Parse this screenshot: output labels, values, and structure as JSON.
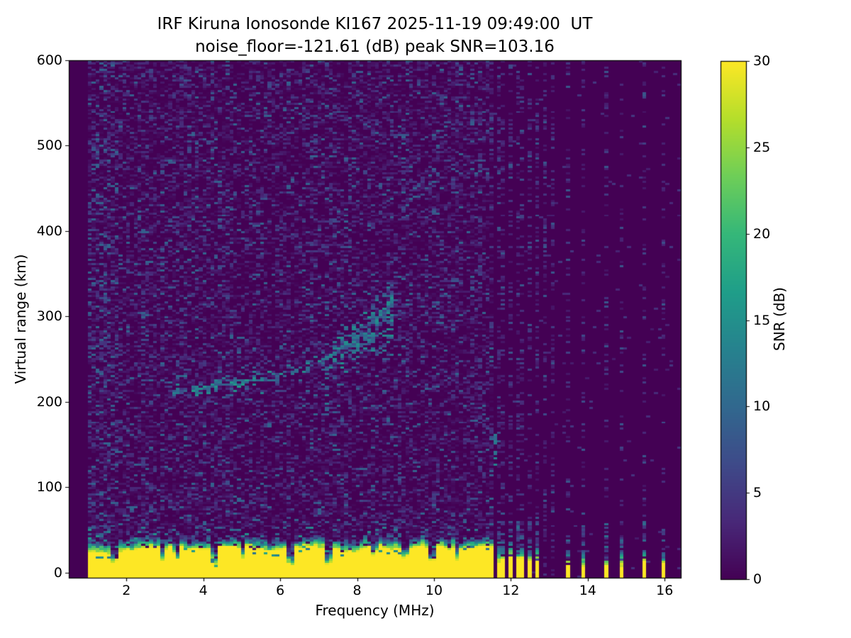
{
  "chart_data": {
    "type": "heatmap",
    "title": "IRF Kiruna Ionosonde KI167 2025-11-19 09:49:00  UT",
    "subtitle": "noise_floor=-121.61 (dB) peak SNR=103.16",
    "xlabel": "Frequency (MHz)",
    "ylabel": "Virtual range (km)",
    "xlim": [
      0.5,
      16.42
    ],
    "ylim": [
      -6,
      600
    ],
    "xticks": [
      2,
      4,
      6,
      8,
      10,
      12,
      14,
      16
    ],
    "yticks": [
      0,
      100,
      200,
      300,
      400,
      500,
      600
    ],
    "grid": false,
    "colorbar": {
      "label": "SNR (dB)",
      "min": 0,
      "max": 30,
      "ticks": [
        0,
        5,
        10,
        15,
        20,
        25,
        30
      ],
      "position": "right"
    },
    "colormap": "viridis",
    "colormap_stops": [
      "#440154",
      "#482878",
      "#3e4a89",
      "#31688e",
      "#26828e",
      "#1f9e89",
      "#35b779",
      "#6ece58",
      "#b5de2b",
      "#fde725"
    ],
    "noise_floor_db": -121.61,
    "peak_snr_db": 103.16,
    "features": {
      "no_data_below_mhz": 1.0,
      "main_noise": {
        "f_start": 1.0,
        "f_end": 11.52,
        "fill_probability": 0.52,
        "mean_db": 2.6,
        "bright_left_end_mhz": 1.8,
        "near_bottom_boost_below_km": 95
      },
      "ground_echo_band": {
        "f_start": 1.0,
        "f_end": 11.52,
        "solid_top_km_mean": 23,
        "solid_db": 30,
        "fringe_km_mean": 11,
        "notches": [
          {
            "f": 1.68,
            "top_km": 8,
            "w": 0.12
          },
          {
            "f": 2.95,
            "top_km": 12,
            "w": 0.1
          },
          {
            "f": 3.3,
            "top_km": 11,
            "w": 0.1
          },
          {
            "f": 4.3,
            "top_km": 7,
            "w": 0.12
          },
          {
            "f": 5.0,
            "top_km": 13,
            "w": 0.08
          },
          {
            "f": 6.28,
            "top_km": 3,
            "w": 0.12
          },
          {
            "f": 7.26,
            "top_km": 3,
            "w": 0.12
          },
          {
            "f": 8.45,
            "top_km": 12,
            "w": 0.08
          },
          {
            "f": 9.25,
            "top_km": 10,
            "w": 0.08
          },
          {
            "f": 9.95,
            "top_km": 5,
            "w": 0.1
          },
          {
            "f": 10.6,
            "top_km": 13,
            "w": 0.08
          }
        ]
      },
      "echo_trace": {
        "points": [
          [
            3.2,
            211
          ],
          [
            3.6,
            214
          ],
          [
            4.0,
            216
          ],
          [
            4.4,
            219
          ],
          [
            4.8,
            222
          ],
          [
            5.2,
            226
          ],
          [
            5.6,
            229
          ],
          [
            6.0,
            233
          ],
          [
            6.4,
            238
          ],
          [
            6.8,
            244
          ],
          [
            7.2,
            252
          ],
          [
            7.6,
            262
          ],
          [
            8.0,
            274
          ],
          [
            8.4,
            288
          ],
          [
            8.7,
            300
          ],
          [
            9.0,
            314
          ]
        ],
        "spread_km_base": 5,
        "spread_grow_after_mhz": 7,
        "spread_km_per_mhz": 10,
        "db_min": 6,
        "db_max": 17,
        "bright_segment_mhz": [
          3.7,
          5.5
        ],
        "dense_segment_mhz": [
          7.35,
          8.95
        ]
      },
      "interference_channels": [
        {
          "f": 11.66,
          "strip": true
        },
        {
          "f": 11.84,
          "strip": true
        },
        {
          "f": 12.02,
          "strip": true
        },
        {
          "f": 12.18,
          "strip": true
        },
        {
          "f": 12.34,
          "strip": true
        },
        {
          "f": 12.52,
          "strip": true
        },
        {
          "f": 12.7,
          "strip": true
        },
        {
          "f": 12.88,
          "strip": false
        },
        {
          "f": 13.06,
          "strip": false
        },
        {
          "f": 13.44,
          "strip": true
        },
        {
          "f": 13.93,
          "strip": true
        },
        {
          "f": 14.43,
          "strip": true
        },
        {
          "f": 14.91,
          "strip": true
        },
        {
          "f": 15.43,
          "strip": true
        },
        {
          "f": 15.93,
          "strip": true
        }
      ],
      "vertical_streaks": [
        {
          "f": 7.17,
          "r0": 182,
          "r1": 245,
          "p": 0.55,
          "db": 10
        },
        {
          "f": 11.56,
          "r0": 122,
          "r1": 162,
          "p": 0.85,
          "db": 12
        }
      ]
    }
  }
}
